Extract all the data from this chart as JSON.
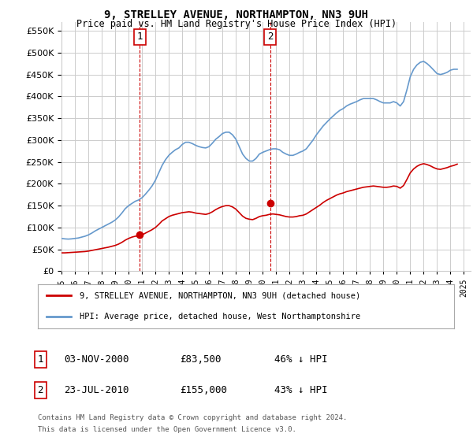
{
  "title": "9, STRELLEY AVENUE, NORTHAMPTON, NN3 9UH",
  "subtitle": "Price paid vs. HM Land Registry's House Price Index (HPI)",
  "ylim": [
    0,
    570000
  ],
  "yticks": [
    0,
    50000,
    100000,
    150000,
    200000,
    250000,
    300000,
    350000,
    400000,
    450000,
    500000,
    550000
  ],
  "xlim_start": 1995.0,
  "xlim_end": 2025.5,
  "sale1_x": 2000.84,
  "sale1_y": 83500,
  "sale1_label": "1",
  "sale2_x": 2010.55,
  "sale2_y": 155000,
  "sale2_label": "2",
  "legend_line1": "9, STRELLEY AVENUE, NORTHAMPTON, NN3 9UH (detached house)",
  "legend_line2": "HPI: Average price, detached house, West Northamptonshire",
  "table_row1_num": "1",
  "table_row1_date": "03-NOV-2000",
  "table_row1_price": "£83,500",
  "table_row1_hpi": "46% ↓ HPI",
  "table_row2_num": "2",
  "table_row2_date": "23-JUL-2010",
  "table_row2_price": "£155,000",
  "table_row2_hpi": "43% ↓ HPI",
  "footnote1": "Contains HM Land Registry data © Crown copyright and database right 2024.",
  "footnote2": "This data is licensed under the Open Government Licence v3.0.",
  "red_color": "#cc0000",
  "blue_color": "#6699cc",
  "vline_color": "#cc0000",
  "grid_color": "#cccccc",
  "background_color": "#ffffff",
  "hpi_data_x": [
    1995.0,
    1995.25,
    1995.5,
    1995.75,
    1996.0,
    1996.25,
    1996.5,
    1996.75,
    1997.0,
    1997.25,
    1997.5,
    1997.75,
    1998.0,
    1998.25,
    1998.5,
    1998.75,
    1999.0,
    1999.25,
    1999.5,
    1999.75,
    2000.0,
    2000.25,
    2000.5,
    2000.75,
    2001.0,
    2001.25,
    2001.5,
    2001.75,
    2002.0,
    2002.25,
    2002.5,
    2002.75,
    2003.0,
    2003.25,
    2003.5,
    2003.75,
    2004.0,
    2004.25,
    2004.5,
    2004.75,
    2005.0,
    2005.25,
    2005.5,
    2005.75,
    2006.0,
    2006.25,
    2006.5,
    2006.75,
    2007.0,
    2007.25,
    2007.5,
    2007.75,
    2008.0,
    2008.25,
    2008.5,
    2008.75,
    2009.0,
    2009.25,
    2009.5,
    2009.75,
    2010.0,
    2010.25,
    2010.5,
    2010.75,
    2011.0,
    2011.25,
    2011.5,
    2011.75,
    2012.0,
    2012.25,
    2012.5,
    2012.75,
    2013.0,
    2013.25,
    2013.5,
    2013.75,
    2014.0,
    2014.25,
    2014.5,
    2014.75,
    2015.0,
    2015.25,
    2015.5,
    2015.75,
    2016.0,
    2016.25,
    2016.5,
    2016.75,
    2017.0,
    2017.25,
    2017.5,
    2017.75,
    2018.0,
    2018.25,
    2018.5,
    2018.75,
    2019.0,
    2019.25,
    2019.5,
    2019.75,
    2020.0,
    2020.25,
    2020.5,
    2020.75,
    2021.0,
    2021.25,
    2021.5,
    2021.75,
    2022.0,
    2022.25,
    2022.5,
    2022.75,
    2023.0,
    2023.25,
    2023.5,
    2023.75,
    2024.0,
    2024.25,
    2024.5
  ],
  "hpi_data_y": [
    75000,
    74000,
    73500,
    74000,
    75000,
    76000,
    78000,
    80000,
    83000,
    87000,
    92000,
    96000,
    100000,
    104000,
    108000,
    112000,
    117000,
    124000,
    133000,
    143000,
    150000,
    155000,
    160000,
    163000,
    168000,
    176000,
    185000,
    195000,
    208000,
    225000,
    242000,
    255000,
    265000,
    272000,
    278000,
    282000,
    290000,
    295000,
    295000,
    292000,
    288000,
    285000,
    283000,
    282000,
    285000,
    293000,
    302000,
    308000,
    315000,
    318000,
    318000,
    312000,
    302000,
    285000,
    268000,
    258000,
    252000,
    252000,
    258000,
    268000,
    272000,
    275000,
    278000,
    280000,
    280000,
    278000,
    272000,
    268000,
    265000,
    265000,
    268000,
    272000,
    275000,
    280000,
    290000,
    300000,
    312000,
    322000,
    332000,
    340000,
    348000,
    355000,
    362000,
    368000,
    372000,
    378000,
    382000,
    385000,
    388000,
    392000,
    395000,
    395000,
    395000,
    395000,
    392000,
    388000,
    385000,
    385000,
    385000,
    388000,
    385000,
    378000,
    388000,
    415000,
    445000,
    462000,
    472000,
    478000,
    480000,
    475000,
    468000,
    460000,
    452000,
    450000,
    452000,
    455000,
    460000,
    462000,
    462000
  ],
  "price_data_x": [
    1995.0,
    1995.25,
    1995.5,
    1995.75,
    1996.0,
    1996.25,
    1996.5,
    1996.75,
    1997.0,
    1997.25,
    1997.5,
    1997.75,
    1998.0,
    1998.25,
    1998.5,
    1998.75,
    1999.0,
    1999.25,
    1999.5,
    1999.75,
    2000.0,
    2000.25,
    2000.5,
    2000.75,
    2001.0,
    2001.25,
    2001.5,
    2001.75,
    2002.0,
    2002.25,
    2002.5,
    2002.75,
    2003.0,
    2003.25,
    2003.5,
    2003.75,
    2004.0,
    2004.25,
    2004.5,
    2004.75,
    2005.0,
    2005.25,
    2005.5,
    2005.75,
    2006.0,
    2006.25,
    2006.5,
    2006.75,
    2007.0,
    2007.25,
    2007.5,
    2007.75,
    2008.0,
    2008.25,
    2008.5,
    2008.75,
    2009.0,
    2009.25,
    2009.5,
    2009.75,
    2010.0,
    2010.25,
    2010.5,
    2010.75,
    2011.0,
    2011.25,
    2011.5,
    2011.75,
    2012.0,
    2012.25,
    2012.5,
    2012.75,
    2013.0,
    2013.25,
    2013.5,
    2013.75,
    2014.0,
    2014.25,
    2014.5,
    2014.75,
    2015.0,
    2015.25,
    2015.5,
    2015.75,
    2016.0,
    2016.25,
    2016.5,
    2016.75,
    2017.0,
    2017.25,
    2017.5,
    2017.75,
    2018.0,
    2018.25,
    2018.5,
    2018.75,
    2019.0,
    2019.25,
    2019.5,
    2019.75,
    2020.0,
    2020.25,
    2020.5,
    2020.75,
    2021.0,
    2021.25,
    2021.5,
    2021.75,
    2022.0,
    2022.25,
    2022.5,
    2022.75,
    2023.0,
    2023.25,
    2023.5,
    2023.75,
    2024.0,
    2024.25,
    2024.5
  ],
  "price_data_y": [
    42000,
    42000,
    42500,
    43000,
    43500,
    44000,
    44500,
    45000,
    46000,
    47500,
    49000,
    50500,
    52000,
    53500,
    55000,
    57000,
    59000,
    62000,
    66000,
    71000,
    75000,
    78000,
    80000,
    81000,
    83000,
    87000,
    91000,
    95000,
    100000,
    107000,
    115000,
    120000,
    125000,
    128000,
    130000,
    132000,
    134000,
    135000,
    136000,
    135000,
    133000,
    132000,
    131000,
    130000,
    132000,
    136000,
    141000,
    145000,
    148000,
    150000,
    150000,
    147000,
    142000,
    134000,
    126000,
    121000,
    119000,
    118000,
    121000,
    125000,
    127000,
    128000,
    130000,
    131000,
    130000,
    129000,
    127000,
    125000,
    124000,
    124000,
    125000,
    127000,
    128000,
    131000,
    136000,
    141000,
    146000,
    151000,
    157000,
    162000,
    166000,
    170000,
    174000,
    177000,
    179000,
    182000,
    184000,
    186000,
    188000,
    190000,
    192000,
    193000,
    194000,
    195000,
    194000,
    193000,
    192000,
    192000,
    193000,
    195000,
    194000,
    190000,
    196000,
    210000,
    225000,
    234000,
    240000,
    244000,
    246000,
    244000,
    241000,
    237000,
    234000,
    233000,
    235000,
    237000,
    240000,
    242000,
    245000
  ]
}
